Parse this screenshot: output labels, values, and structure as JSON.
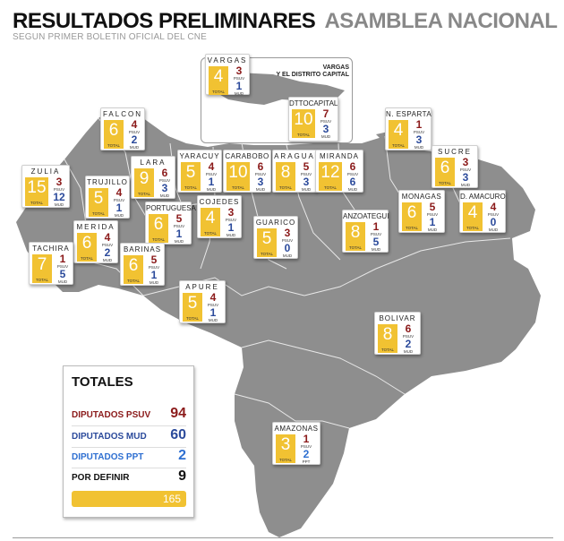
{
  "header": {
    "title_bold": "RESULTADOS PRELIMINARES",
    "title_gray": "ASAMBLEA NACIONAL",
    "subtitle": "SEGUN PRIMER BOLETIN OFICIAL DEL CNE"
  },
  "labels": {
    "total": "TOTAL",
    "psuv": "PSUV",
    "mud": "MUD",
    "ppt": "PPT"
  },
  "vargas_note": {
    "line1": "VARGAS",
    "line2": "Y EL DISTRITO CAPITAL"
  },
  "colors": {
    "psuv": "#8b1a1a",
    "mud": "#2b4a9b",
    "ppt": "#2e6fd1",
    "total": "#f1c232",
    "map": "#8e8e8e"
  },
  "states": [
    {
      "name": "VARGAS",
      "total": "4",
      "psuv": "3",
      "mud": "1"
    },
    {
      "name": "DTTOCAPITAL",
      "total": "10",
      "psuv": "7",
      "mud": "3"
    },
    {
      "name": "FALCON",
      "total": "6",
      "psuv": "4",
      "mud": "2"
    },
    {
      "name": "ZULIA",
      "total": "15",
      "psuv": "3",
      "mud": "12"
    },
    {
      "name": "LARA",
      "total": "9",
      "psuv": "6",
      "mud": "3"
    },
    {
      "name": "YARACUY",
      "total": "5",
      "psuv": "4",
      "mud": "1"
    },
    {
      "name": "CARABOBO",
      "total": "10",
      "psuv": "6",
      "mud": "3"
    },
    {
      "name": "ARAGUA",
      "total": "8",
      "psuv": "5",
      "mud": "3"
    },
    {
      "name": "MIRANDA",
      "total": "12",
      "psuv": "6",
      "mud": "6"
    },
    {
      "name": "N. ESPARTA",
      "total": "4",
      "psuv": "1",
      "mud": "3"
    },
    {
      "name": "SUCRE",
      "total": "6",
      "psuv": "3",
      "mud": "3"
    },
    {
      "name": "TRUJILLO",
      "total": "5",
      "psuv": "4",
      "mud": "1"
    },
    {
      "name": "PORTUGUESA",
      "total": "6",
      "psuv": "5",
      "mud": "1"
    },
    {
      "name": "COJEDES",
      "total": "4",
      "psuv": "3",
      "mud": "1"
    },
    {
      "name": "GUARICO",
      "total": "5",
      "psuv": "3",
      "mud": "0"
    },
    {
      "name": "ANZOATEGUI",
      "total": "8",
      "psuv": "1",
      "mud": "5"
    },
    {
      "name": "MONAGAS",
      "total": "6",
      "psuv": "5",
      "mud": "1"
    },
    {
      "name": "D. AMACURO",
      "total": "4",
      "psuv": "4",
      "mud": "0"
    },
    {
      "name": "MERIDA",
      "total": "6",
      "psuv": "4",
      "mud": "2"
    },
    {
      "name": "TACHIRA",
      "total": "7",
      "psuv": "1",
      "mud": "5"
    },
    {
      "name": "BARINAS",
      "total": "6",
      "psuv": "5",
      "mud": "1"
    },
    {
      "name": "APURE",
      "total": "5",
      "psuv": "4",
      "mud": "1"
    },
    {
      "name": "BOLIVAR",
      "total": "8",
      "psuv": "6",
      "mud": "2"
    },
    {
      "name": "AMAZONAS",
      "total": "3",
      "psuv": "1",
      "ppt": "2"
    }
  ],
  "totales": {
    "title": "TOTALES",
    "rows": [
      {
        "label": "DIPUTADOS PSUV",
        "value": "94"
      },
      {
        "label": "DIPUTADOS MUD",
        "value": "60"
      },
      {
        "label": "DIPUTADOS PPT",
        "value": "2"
      },
      {
        "label": "POR DEFINIR",
        "value": "9"
      }
    ],
    "grand_total": "165"
  }
}
